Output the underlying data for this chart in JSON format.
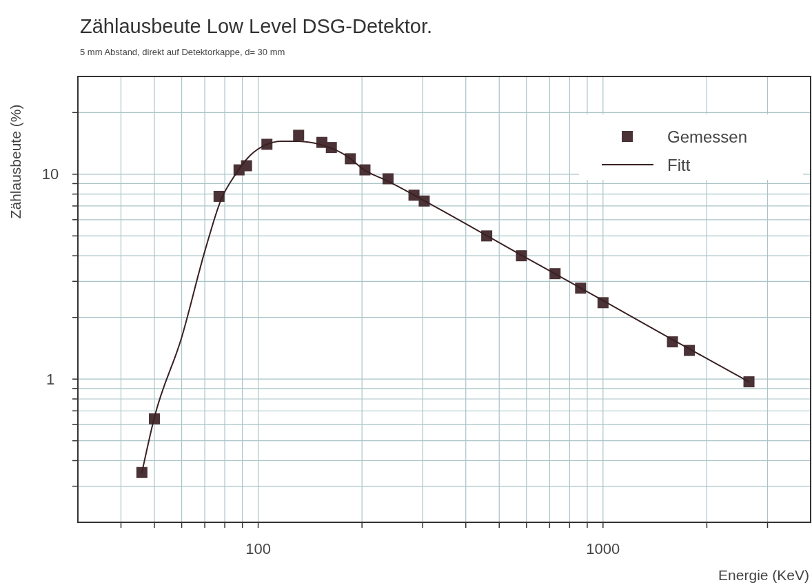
{
  "chart_data": {
    "type": "scatter",
    "title": "Zählausbeute Low Level DSG-Detektor.",
    "subtitle": "5 mm Abstand, direkt auf Detektorkappe, d= 30 mm",
    "xlabel": "Energie (KeV)",
    "ylabel": "Zählausbeute (%)",
    "log": "xy",
    "grid": true,
    "legend": "top right",
    "xlim": [
      30,
      4000
    ],
    "ylim": [
      0.2,
      30
    ],
    "xticks": [
      {
        "value": 40,
        "label": null
      },
      {
        "value": 50,
        "label": null
      },
      {
        "value": 60,
        "label": null
      },
      {
        "value": 70,
        "label": null
      },
      {
        "value": 80,
        "label": null
      },
      {
        "value": 90,
        "label": null
      },
      100,
      {
        "value": 200,
        "label": null
      },
      {
        "value": 300,
        "label": null
      },
      {
        "value": 400,
        "label": null
      },
      {
        "value": 500,
        "label": null
      },
      {
        "value": 600,
        "label": null
      },
      {
        "value": 700,
        "label": null
      },
      {
        "value": 800,
        "label": null
      },
      {
        "value": 900,
        "label": null
      },
      1000,
      {
        "value": 2000,
        "label": null
      },
      {
        "value": 3000,
        "label": null
      }
    ],
    "yticks": [
      {
        "value": 0.3,
        "label": null
      },
      {
        "value": 0.4,
        "label": null
      },
      {
        "value": 0.5,
        "label": null
      },
      {
        "value": 0.6,
        "label": null
      },
      {
        "value": 0.7,
        "label": null
      },
      {
        "value": 0.8,
        "label": null
      },
      {
        "value": 0.9,
        "label": null
      },
      1,
      {
        "value": 2,
        "label": null
      },
      {
        "value": 3,
        "label": null
      },
      {
        "value": 4,
        "label": null
      },
      {
        "value": 5,
        "label": null
      },
      {
        "value": 6,
        "label": null
      },
      {
        "value": 7,
        "label": null
      },
      {
        "value": 8,
        "label": null
      },
      {
        "value": 9,
        "label": null
      },
      10,
      {
        "value": 20,
        "label": null
      }
    ],
    "series": [
      {
        "name": "Gemessen",
        "marker": "square",
        "color": "#4a3236",
        "x": [
          46,
          50,
          77,
          88,
          92.5,
          106,
          131,
          153,
          163,
          185,
          204,
          238,
          283,
          303,
          460,
          580,
          726,
          861,
          1000,
          1590,
          1780,
          2650
        ],
        "values": [
          0.35,
          0.64,
          7.8,
          10.5,
          11,
          14,
          15.5,
          14.3,
          13.5,
          11.9,
          10.5,
          9.5,
          7.9,
          7.4,
          5.0,
          4.0,
          3.27,
          2.78,
          2.36,
          1.52,
          1.38,
          0.97
        ]
      },
      {
        "name": "Fitt",
        "type": "line",
        "marker": "none",
        "line_style": "solid",
        "color": "#3a2022",
        "x": [
          46,
          50,
          60,
          70,
          78,
          86,
          95,
          105,
          117,
          130,
          145,
          161,
          179,
          203,
          236,
          300,
          600,
          1000,
          1600,
          2650
        ],
        "values": [
          0.35,
          0.65,
          1.6,
          4.2,
          7.5,
          10,
          12.4,
          13.9,
          14.5,
          14.5,
          14.2,
          13.5,
          12.4,
          10.5,
          9.3,
          7.5,
          3.9,
          2.42,
          1.55,
          0.97
        ]
      }
    ]
  }
}
